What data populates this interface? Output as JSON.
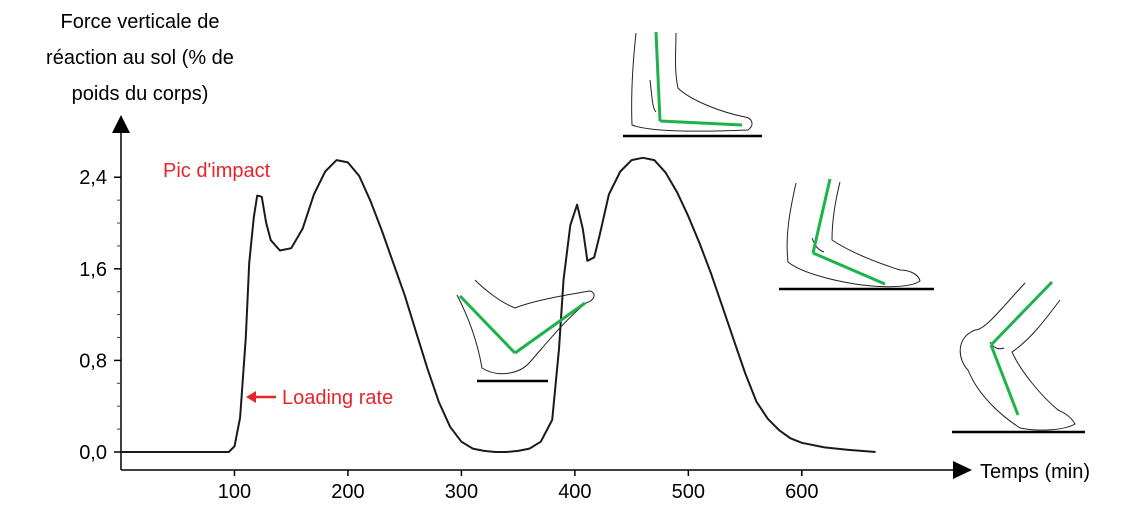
{
  "chart_data": {
    "type": "line",
    "ylabel_lines": [
      "Force verticale de",
      "réaction au sol (% de",
      "poids du corps)"
    ],
    "xlabel": "Temps (min)",
    "x_ticks": [
      100,
      200,
      300,
      400,
      500,
      600
    ],
    "y_ticks": [
      "0,0",
      "0,8",
      "1,6",
      "2,4"
    ],
    "y_tick_values": [
      0,
      0.8,
      1.6,
      2.4
    ],
    "xlim": [
      0,
      735
    ],
    "ylim": [
      0,
      2.9
    ],
    "grid": false,
    "series": [
      {
        "x": [
          0,
          95,
          100,
          105,
          110,
          113,
          117,
          120,
          124,
          128,
          132,
          140,
          150,
          160,
          170,
          180,
          190,
          200,
          210,
          220,
          230,
          240,
          250,
          260,
          270,
          280,
          290,
          300,
          310,
          320,
          330,
          340,
          350,
          360,
          370,
          380,
          386,
          390,
          396,
          402,
          407,
          411,
          417,
          422,
          430,
          440,
          450,
          460,
          470,
          480,
          490,
          500,
          510,
          520,
          530,
          540,
          550,
          560,
          570,
          580,
          590,
          600,
          620,
          640,
          665
        ],
        "y": [
          0,
          0,
          0.05,
          0.3,
          1.0,
          1.65,
          2.05,
          2.24,
          2.23,
          2.0,
          1.85,
          1.76,
          1.78,
          1.95,
          2.25,
          2.45,
          2.55,
          2.53,
          2.41,
          2.19,
          1.93,
          1.65,
          1.37,
          1.05,
          0.73,
          0.44,
          0.22,
          0.09,
          0.03,
          0.01,
          0.0,
          0.0,
          0.01,
          0.03,
          0.09,
          0.28,
          0.9,
          1.5,
          1.98,
          2.16,
          1.95,
          1.67,
          1.7,
          1.9,
          2.25,
          2.45,
          2.55,
          2.57,
          2.55,
          2.44,
          2.27,
          2.06,
          1.82,
          1.56,
          1.27,
          0.98,
          0.69,
          0.44,
          0.29,
          0.19,
          0.12,
          0.08,
          0.04,
          0.02,
          0.0
        ]
      }
    ],
    "annotations": {
      "peak": "Pic d'impact",
      "loading": "Loading rate"
    },
    "colors": {
      "line": "#1a1a1a",
      "annotation": "#e8242b",
      "guide": "#1db34a"
    }
  }
}
